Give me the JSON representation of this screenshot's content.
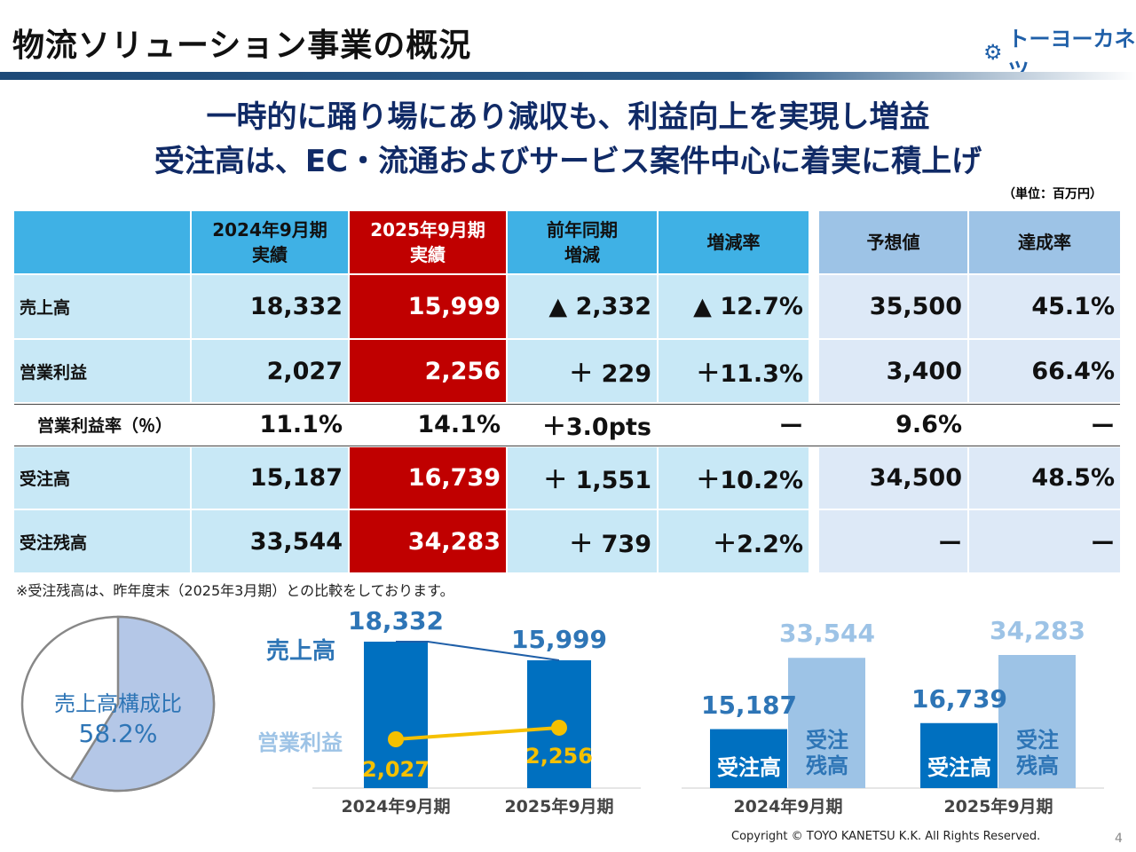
{
  "header": {
    "title": "物流ソリューション事業の概況",
    "logo": "トーヨーカネツ"
  },
  "headline": {
    "line1": "一時的に踊り場にあり減収も、利益向上を実現し増益",
    "line2": "受注高は、EC・流通およびサービス案件中心に着実に積上げ"
  },
  "unit": "（単位：百万円）",
  "table": {
    "columns": [
      "",
      "2024年9月期\n実績",
      "2025年9月期\n実績",
      "前年同期\n増減",
      "増減率",
      "予想値",
      "達成率"
    ],
    "rows": [
      {
        "label": "売上高",
        "values": [
          "18,332",
          "15,999",
          "▲ 2,332",
          "▲ 12.7%",
          "35,500",
          "45.1%"
        ]
      },
      {
        "label": "営業利益",
        "values": [
          "2,027",
          "2,256",
          "＋ 229",
          "＋11.3%",
          "3,400",
          "66.4%"
        ]
      },
      {
        "label": "営業利益率（％）",
        "values": [
          "11.1%",
          "14.1%",
          "＋3.0pts",
          "ー",
          "9.6%",
          "ー"
        ]
      },
      {
        "label": "受注高",
        "values": [
          "15,187",
          "16,739",
          "＋ 1,551",
          "＋10.2%",
          "34,500",
          "48.5%"
        ]
      },
      {
        "label": "受注残高",
        "values": [
          "33,544",
          "34,283",
          "＋ 739",
          "＋2.2%",
          "ー",
          "ー"
        ]
      }
    ]
  },
  "note": "※受注残高は、昨年度末（2025年3月期）との比較をしております。",
  "pie": {
    "label": "売上高構成比",
    "value_label": "58.2%",
    "fraction": 0.582
  },
  "sales_chart": {
    "periods": [
      "2024年9月期",
      "2025年9月期"
    ],
    "sales_label": "売上高",
    "profit_label": "営業利益",
    "sales": [
      18332,
      15999
    ],
    "sales_labels": [
      "18,332",
      "15,999"
    ],
    "profit": [
      2027,
      2256
    ],
    "profit_labels": [
      "2,027",
      "2,256"
    ]
  },
  "orders_chart": {
    "periods": [
      "2024年9月期",
      "2025年9月期"
    ],
    "orders_label": "受注高",
    "backlog_label": "受注\n残高",
    "orders": [
      15187,
      16739
    ],
    "orders_labels": [
      "15,187",
      "16,739"
    ],
    "backlog": [
      33544,
      34283
    ],
    "backlog_labels": [
      "33,544",
      "34,283"
    ]
  },
  "footer": {
    "copyright": "Copyright ©  TOYO KANETSU K.K. All Rights Reserved.",
    "page": "4"
  }
}
